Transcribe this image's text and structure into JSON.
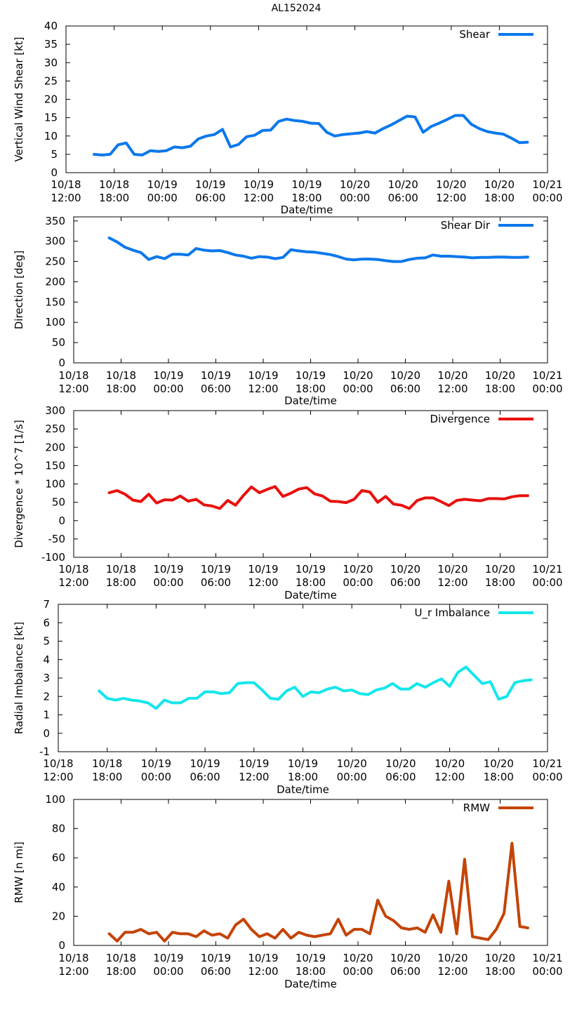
{
  "figure_title": "AL152024",
  "x_axis": {
    "xlabel": "Date/time",
    "tick_labels": [
      {
        "line1": "10/18",
        "line2": "12:00"
      },
      {
        "line1": "10/18",
        "line2": "18:00"
      },
      {
        "line1": "10/19",
        "line2": "00:00"
      },
      {
        "line1": "10/19",
        "line2": "06:00"
      },
      {
        "line1": "10/19",
        "line2": "12:00"
      },
      {
        "line1": "10/19",
        "line2": "18:00"
      },
      {
        "line1": "10/20",
        "line2": "00:00"
      },
      {
        "line1": "10/20",
        "line2": "06:00"
      },
      {
        "line1": "10/20",
        "line2": "12:00"
      },
      {
        "line1": "10/20",
        "line2": "18:00"
      },
      {
        "line1": "10/21",
        "line2": "00:00"
      }
    ],
    "xlim_hours": [
      0,
      60
    ]
  },
  "chart_data": [
    {
      "type": "line",
      "title": "AL152024",
      "xlabel": "Date/time",
      "ylabel": "Vertical Wind Shear [kt]",
      "ylim": [
        0,
        40
      ],
      "yticks": [
        0,
        5,
        10,
        15,
        20,
        25,
        30,
        35,
        40
      ],
      "legend": "Shear",
      "legend_position": "top-right",
      "color": "#0a78ec",
      "x_hours": [
        3.5,
        4.5,
        5.5,
        6.5,
        7.5,
        8.5,
        9.5,
        10.5,
        11.5,
        12.5,
        13.5,
        14.5,
        15.5,
        16.5,
        17.5,
        18.5,
        19.5,
        20.5,
        21.5,
        22.5,
        23.5,
        24.5,
        25.5,
        26.5,
        27.5,
        28.5,
        29.5,
        30.5,
        31.5,
        32.5,
        33.5,
        34.5,
        35.5,
        36.5,
        37.5,
        38.5,
        39.5,
        40.5,
        41.5,
        42.5,
        43.5,
        44.5,
        45.5,
        46.5,
        47.5,
        48.5,
        49.5,
        50.5,
        51.5,
        52.5,
        53.5,
        54.5,
        55.5,
        56.5,
        57.5
      ],
      "values": [
        5,
        4.8,
        5,
        7.6,
        8.1,
        5,
        4.8,
        6,
        5.8,
        6,
        7,
        6.8,
        7.2,
        9.2,
        10,
        10.4,
        11.8,
        7,
        7.7,
        9.8,
        10.2,
        11.5,
        11.6,
        14,
        14.6,
        14.2,
        14,
        13.5,
        13.4,
        11,
        10,
        10.4,
        10.6,
        10.8,
        11.2,
        10.8,
        12,
        13,
        14.2,
        15.4,
        15.2,
        11,
        12.6,
        13.5,
        14.5,
        15.6,
        15.6,
        13.2,
        12,
        11.2,
        10.8,
        10.5,
        9.4,
        8.2,
        8.3
      ]
    },
    {
      "type": "line",
      "xlabel": "Date/time",
      "ylabel": "Direction [deg]",
      "ylim": [
        0,
        360
      ],
      "yticks": [
        0,
        50,
        100,
        150,
        200,
        250,
        300,
        350
      ],
      "legend": "Shear Dir",
      "legend_position": "top-right",
      "color": "#0a78ec",
      "x_hours": [
        4.5,
        5.5,
        6.5,
        7.5,
        8.5,
        9.5,
        10.5,
        11.5,
        12.5,
        13.5,
        14.5,
        15.5,
        16.5,
        17.5,
        18.5,
        19.5,
        20.5,
        21.5,
        22.5,
        23.5,
        24.5,
        25.5,
        26.5,
        27.5,
        28.5,
        29.5,
        30.5,
        31.5,
        32.5,
        33.5,
        34.5,
        35.5,
        36.5,
        37.5,
        38.5,
        39.5,
        40.5,
        41.5,
        42.5,
        43.5,
        44.5,
        45.5,
        46.5,
        47.5,
        48.5,
        49.5,
        50.5,
        51.5,
        52.5,
        53.5,
        54.5,
        55.5,
        56.5,
        57.5
      ],
      "values": [
        308,
        298,
        285,
        278,
        272,
        255,
        262,
        257,
        268,
        268,
        266,
        282,
        278,
        276,
        277,
        272,
        266,
        263,
        258,
        262,
        261,
        257,
        260,
        279,
        276,
        274,
        273,
        270,
        267,
        262,
        256,
        254,
        256,
        256,
        255,
        252,
        250,
        250,
        255,
        258,
        259,
        266,
        263,
        263,
        262,
        261,
        259,
        260,
        260,
        261,
        261,
        260,
        260,
        261
      ]
    },
    {
      "type": "line",
      "xlabel": "Date/time",
      "ylabel": "Divergence * 10^7 [1/s]",
      "ylim": [
        -100,
        300
      ],
      "yticks": [
        -100,
        -50,
        0,
        50,
        100,
        150,
        200,
        250,
        300
      ],
      "legend": "Divergence",
      "legend_position": "top-right",
      "color": "#e8100d",
      "x_hours": [
        4.5,
        5.5,
        6.5,
        7.5,
        8.5,
        9.5,
        10.5,
        11.5,
        12.5,
        13.5,
        14.5,
        15.5,
        16.5,
        17.5,
        18.5,
        19.5,
        20.5,
        21.5,
        22.5,
        23.5,
        24.5,
        25.5,
        26.5,
        27.5,
        28.5,
        29.5,
        30.5,
        31.5,
        32.5,
        33.5,
        34.5,
        35.5,
        36.5,
        37.5,
        38.5,
        39.5,
        40.5,
        41.5,
        42.5,
        43.5,
        44.5,
        45.5,
        46.5,
        47.5,
        48.5,
        49.5,
        50.5,
        51.5,
        52.5,
        53.5,
        54.5,
        55.5,
        56.5,
        57.5
      ],
      "values": [
        76,
        82,
        72,
        56,
        52,
        72,
        48,
        57,
        56,
        67,
        53,
        58,
        43,
        40,
        33,
        55,
        42,
        69,
        92,
        76,
        85,
        93,
        66,
        75,
        86,
        90,
        73,
        67,
        53,
        52,
        49,
        58,
        82,
        78,
        50,
        66,
        45,
        42,
        33,
        55,
        62,
        62,
        52,
        41,
        55,
        58,
        56,
        54,
        60,
        60,
        59,
        65,
        68,
        68
      ]
    },
    {
      "type": "line",
      "xlabel": "Date/time",
      "ylabel": "Radial Imbalance [kt]",
      "ylim": [
        -1,
        7
      ],
      "yticks": [
        -1,
        0,
        1,
        2,
        3,
        4,
        5,
        6,
        7
      ],
      "legend": "U_r Imbalance",
      "legend_position": "top-right",
      "color": "#14e6ec",
      "x_hours": [
        5,
        6,
        7,
        8,
        9,
        10,
        11,
        12,
        13,
        14,
        15,
        16,
        17,
        18,
        19,
        20,
        21,
        22,
        23,
        24,
        25,
        26,
        27,
        28,
        29,
        30,
        31,
        32,
        33,
        34,
        35,
        36,
        37,
        38,
        39,
        40,
        41,
        42,
        43,
        44,
        45,
        46,
        47,
        48,
        49,
        50,
        51,
        52,
        53,
        54,
        55,
        56,
        57,
        58
      ],
      "values": [
        2.3,
        1.9,
        1.8,
        1.9,
        1.8,
        1.75,
        1.65,
        1.35,
        1.8,
        1.65,
        1.65,
        1.9,
        1.9,
        2.25,
        2.25,
        2.15,
        2.2,
        2.7,
        2.75,
        2.75,
        2.35,
        1.9,
        1.85,
        2.3,
        2.5,
        2.0,
        2.25,
        2.2,
        2.4,
        2.5,
        2.3,
        2.35,
        2.15,
        2.1,
        2.35,
        2.45,
        2.7,
        2.4,
        2.4,
        2.7,
        2.5,
        2.75,
        2.95,
        2.55,
        3.3,
        3.6,
        3.15,
        2.7,
        2.8,
        1.85,
        2.0,
        2.75,
        2.85,
        2.9
      ]
    },
    {
      "type": "line",
      "xlabel": "Date/time",
      "ylabel": "RMW [n mi]",
      "ylim": [
        0,
        100
      ],
      "yticks": [
        0,
        20,
        40,
        60,
        80,
        100
      ],
      "legend": "RMW",
      "legend_position": "top-right",
      "color": "#c44406",
      "x_hours": [
        4.5,
        5.5,
        6.5,
        7.5,
        8.5,
        9.5,
        10.5,
        11.5,
        12.5,
        13.5,
        14.5,
        15.5,
        16.5,
        17.5,
        18.5,
        19.5,
        20.5,
        21.5,
        22.5,
        23.5,
        24.5,
        25.5,
        26.5,
        27.5,
        28.5,
        29.5,
        30.5,
        31.5,
        32.5,
        33.5,
        34.5,
        35.5,
        36.5,
        37.5,
        38.5,
        39.5,
        40.5,
        41.5,
        42.5,
        43.5,
        44.5,
        45.5,
        46.5,
        47.5,
        48.5,
        49.5,
        50.5,
        51.5,
        52.5,
        53.5,
        54.5,
        55.5,
        56.5,
        57.5
      ],
      "values": [
        8,
        3,
        9,
        9,
        11,
        8,
        9,
        3,
        9,
        8,
        8,
        6,
        10,
        7,
        8,
        5,
        14,
        18,
        11,
        6,
        8,
        5,
        11,
        5,
        9,
        7,
        6,
        7,
        8,
        18,
        7,
        11,
        11,
        8,
        31,
        20,
        17,
        12,
        11,
        12,
        9,
        21,
        9,
        44,
        8,
        59,
        6,
        5,
        4,
        11,
        22,
        70,
        13,
        12
      ]
    }
  ]
}
